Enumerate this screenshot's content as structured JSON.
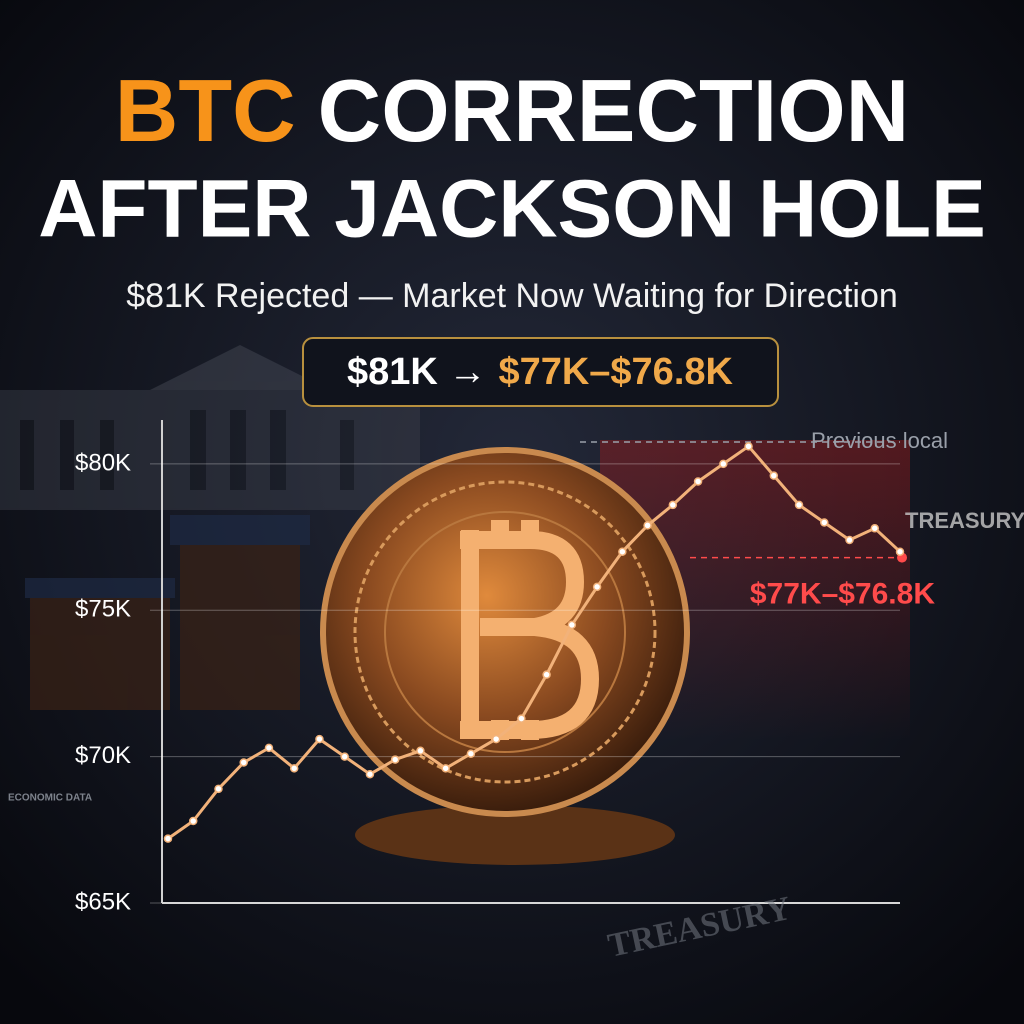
{
  "chart_data": {
    "type": "line",
    "title": {
      "highlight": "BTC",
      "rest": "CORRECTION",
      "line2": "AFTER JACKSON HOLE"
    },
    "subtitle": "$81K Rejected — Market Now Waiting for Direction",
    "badge": {
      "from": "$81K →",
      "to": "$77K–$76.8K"
    },
    "annotations": [
      {
        "text": "Previous local",
        "value": 80750,
        "color": "#9aa0aa"
      },
      {
        "text": "$77K–$76.8K",
        "value": 76800,
        "color": "#ff4b4b"
      }
    ],
    "background_labels": [
      "TREASURY",
      "TREASURY",
      "ECONOMIC DATA"
    ],
    "categories": [
      null,
      null,
      null,
      null,
      null,
      null,
      null,
      null,
      null,
      null,
      null,
      null,
      null,
      null,
      null,
      null,
      null,
      null,
      null,
      null,
      null,
      null,
      null,
      null,
      null,
      null,
      null,
      null,
      null,
      null
    ],
    "values": [
      67200,
      67800,
      68900,
      69800,
      70300,
      69600,
      70600,
      70000,
      69400,
      69900,
      70200,
      69600,
      70100,
      70600,
      71300,
      72800,
      74500,
      75800,
      77000,
      77900,
      78600,
      79400,
      80000,
      80600,
      79600,
      78600,
      78000,
      77400,
      77800,
      77000
    ],
    "color": "#f2b27a",
    "ylim": [
      65000,
      81500
    ],
    "yticks": [
      {
        "value": 65000,
        "label": "$65K"
      },
      {
        "value": 70000,
        "label": "$70K"
      },
      {
        "value": 75000,
        "label": "$75K"
      },
      {
        "value": 80000,
        "label": "$80K"
      }
    ],
    "grid": true
  }
}
